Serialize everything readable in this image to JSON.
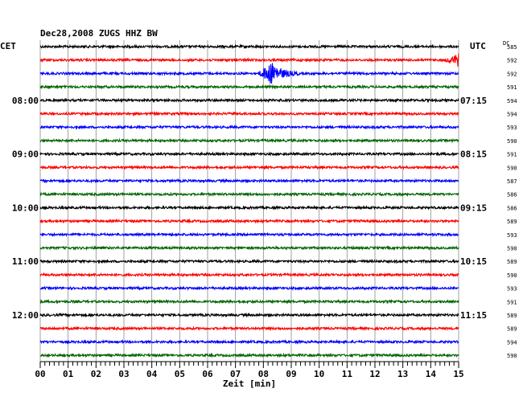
{
  "chart_data": {
    "type": "line",
    "title": "Dec28,2008  ZUGS HHZ BW",
    "left_axis_label": "CET",
    "right_axis_label": "UTC",
    "dc_label": "DC",
    "xlabel": "Zeit [min]",
    "xlim": [
      0,
      15
    ],
    "x_ticks": [
      "00",
      "01",
      "02",
      "03",
      "04",
      "05",
      "06",
      "07",
      "08",
      "09",
      "10",
      "11",
      "12",
      "13",
      "14",
      "15"
    ],
    "grid": "vertical",
    "trace_colors": [
      "#000000",
      "#ff0000",
      "#0000ff",
      "#006400"
    ],
    "rows": [
      {
        "color": "#000000",
        "dc": "585",
        "cet": "",
        "utc": ""
      },
      {
        "color": "#ff0000",
        "dc": "592",
        "cet": "",
        "utc": "",
        "event": {
          "start_min": 14.5,
          "end_min": 15.0,
          "amplitude": "medium"
        }
      },
      {
        "color": "#0000ff",
        "dc": "592",
        "cet": "",
        "utc": "",
        "event": {
          "start_min": 7.8,
          "end_min": 9.3,
          "amplitude": "large"
        }
      },
      {
        "color": "#006400",
        "dc": "591",
        "cet": "",
        "utc": ""
      },
      {
        "color": "#000000",
        "dc": "594",
        "cet": "08:00",
        "utc": "07:15"
      },
      {
        "color": "#ff0000",
        "dc": "594",
        "cet": "",
        "utc": ""
      },
      {
        "color": "#0000ff",
        "dc": "593",
        "cet": "",
        "utc": ""
      },
      {
        "color": "#006400",
        "dc": "590",
        "cet": "",
        "utc": ""
      },
      {
        "color": "#000000",
        "dc": "591",
        "cet": "09:00",
        "utc": "08:15"
      },
      {
        "color": "#ff0000",
        "dc": "590",
        "cet": "",
        "utc": ""
      },
      {
        "color": "#0000ff",
        "dc": "587",
        "cet": "",
        "utc": ""
      },
      {
        "color": "#006400",
        "dc": "586",
        "cet": "",
        "utc": ""
      },
      {
        "color": "#000000",
        "dc": "586",
        "cet": "10:00",
        "utc": "09:15"
      },
      {
        "color": "#ff0000",
        "dc": "589",
        "cet": "",
        "utc": ""
      },
      {
        "color": "#0000ff",
        "dc": "593",
        "cet": "",
        "utc": ""
      },
      {
        "color": "#006400",
        "dc": "590",
        "cet": "",
        "utc": ""
      },
      {
        "color": "#000000",
        "dc": "589",
        "cet": "11:00",
        "utc": "10:15"
      },
      {
        "color": "#ff0000",
        "dc": "590",
        "cet": "",
        "utc": ""
      },
      {
        "color": "#0000ff",
        "dc": "593",
        "cet": "",
        "utc": ""
      },
      {
        "color": "#006400",
        "dc": "591",
        "cet": "",
        "utc": ""
      },
      {
        "color": "#000000",
        "dc": "589",
        "cet": "12:00",
        "utc": "11:15"
      },
      {
        "color": "#ff0000",
        "dc": "589",
        "cet": "",
        "utc": ""
      },
      {
        "color": "#0000ff",
        "dc": "594",
        "cet": "",
        "utc": ""
      },
      {
        "color": "#006400",
        "dc": "590",
        "cet": "",
        "utc": ""
      }
    ]
  }
}
